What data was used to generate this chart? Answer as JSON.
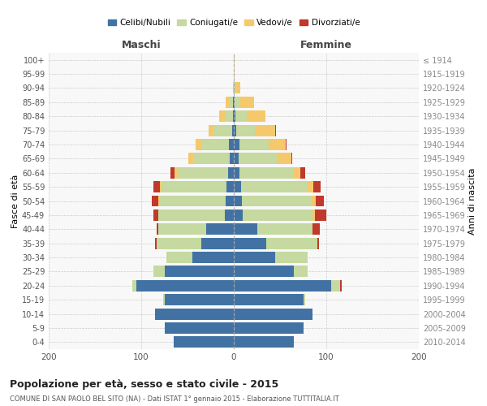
{
  "age_groups": [
    "0-4",
    "5-9",
    "10-14",
    "15-19",
    "20-24",
    "25-29",
    "30-34",
    "35-39",
    "40-44",
    "45-49",
    "50-54",
    "55-59",
    "60-64",
    "65-69",
    "70-74",
    "75-79",
    "80-84",
    "85-89",
    "90-94",
    "95-99",
    "100+"
  ],
  "birth_years": [
    "2010-2014",
    "2005-2009",
    "2000-2004",
    "1995-1999",
    "1990-1994",
    "1985-1989",
    "1980-1984",
    "1975-1979",
    "1970-1974",
    "1965-1969",
    "1960-1964",
    "1955-1959",
    "1950-1954",
    "1945-1949",
    "1940-1944",
    "1935-1939",
    "1930-1934",
    "1925-1929",
    "1920-1924",
    "1915-1919",
    "≤ 1914"
  ],
  "colors": {
    "celibe": "#4272a4",
    "coniugato": "#c5d9a0",
    "vedovo": "#f5c96b",
    "divorziato": "#c0392b"
  },
  "maschi": {
    "celibe": [
      65,
      75,
      85,
      75,
      105,
      75,
      45,
      35,
      30,
      10,
      9,
      8,
      6,
      4,
      5,
      2,
      1,
      1,
      0,
      0,
      0
    ],
    "coniugato": [
      0,
      0,
      0,
      1,
      5,
      12,
      28,
      48,
      52,
      72,
      72,
      70,
      55,
      40,
      30,
      20,
      9,
      4,
      1,
      0,
      0
    ],
    "vedovo": [
      0,
      0,
      0,
      0,
      0,
      0,
      0,
      0,
      0,
      0,
      1,
      2,
      3,
      5,
      6,
      5,
      6,
      4,
      0,
      0,
      0
    ],
    "divorziato": [
      0,
      0,
      0,
      0,
      0,
      0,
      0,
      2,
      1,
      5,
      7,
      7,
      4,
      0,
      0,
      0,
      0,
      0,
      0,
      0,
      0
    ]
  },
  "femmine": {
    "celibe": [
      65,
      75,
      85,
      75,
      105,
      65,
      45,
      35,
      25,
      10,
      9,
      8,
      6,
      5,
      6,
      3,
      2,
      1,
      0,
      0,
      0
    ],
    "coniugato": [
      0,
      0,
      0,
      2,
      10,
      15,
      35,
      55,
      60,
      75,
      75,
      72,
      58,
      42,
      32,
      20,
      12,
      6,
      2,
      0,
      0
    ],
    "vedovo": [
      0,
      0,
      0,
      0,
      0,
      0,
      0,
      0,
      0,
      3,
      5,
      6,
      8,
      15,
      18,
      22,
      20,
      15,
      5,
      1,
      1
    ],
    "divorziato": [
      0,
      0,
      0,
      0,
      2,
      0,
      0,
      2,
      8,
      12,
      8,
      8,
      5,
      1,
      1,
      1,
      0,
      0,
      0,
      0,
      0
    ]
  },
  "xlim": 200,
  "title": "Popolazione per età, sesso e stato civile - 2015",
  "subtitle": "COMUNE DI SAN PAOLO BEL SITO (NA) - Dati ISTAT 1° gennaio 2015 - Elaborazione TUTTITALIA.IT",
  "ylabel_left": "Fasce di età",
  "ylabel_right": "Anni di nascita",
  "maschi_label": "Maschi",
  "femmine_label": "Femmine",
  "legend_labels": [
    "Celibi/Nubili",
    "Coniugati/e",
    "Vedovi/e",
    "Divorziati/e"
  ],
  "bg_color": "#f8f8f8",
  "grid_color": "#cccccc"
}
